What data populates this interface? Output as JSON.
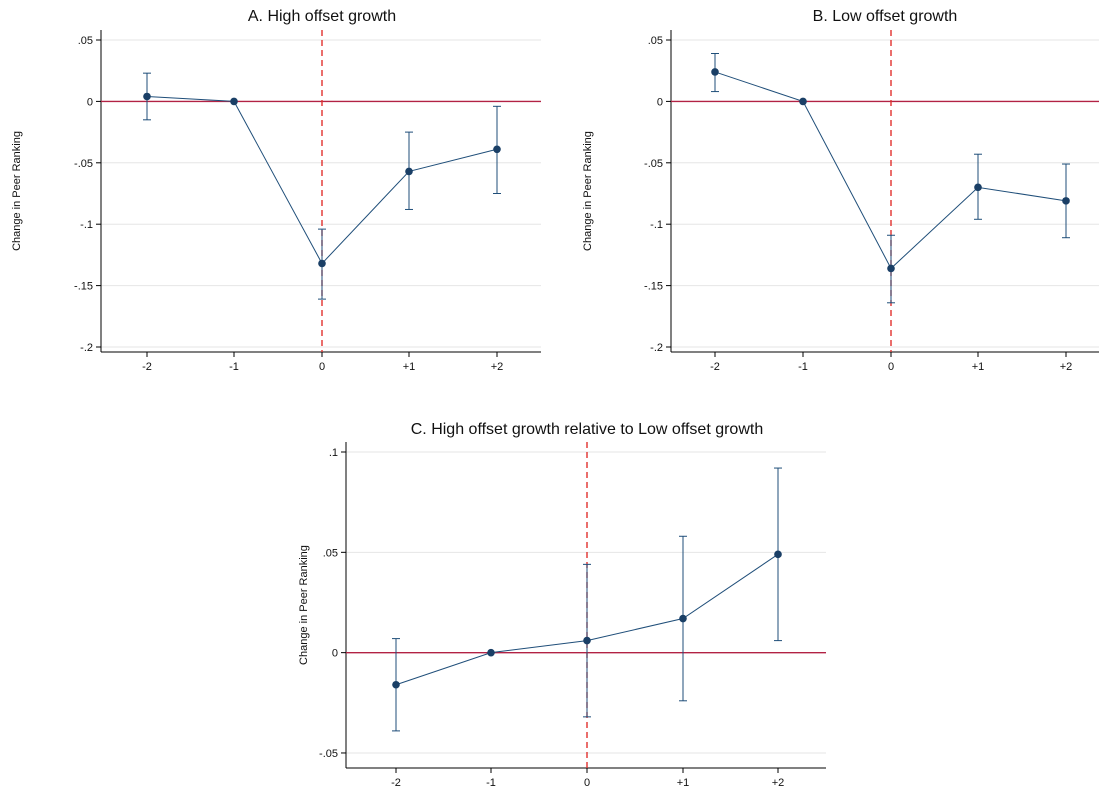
{
  "colors": {
    "series": "#1f4e79",
    "marker": "#1a3f66",
    "zero_line": "#b22244",
    "event_line": "#e0302e",
    "grid": "#e6e6e6",
    "axis": "#000000"
  },
  "chart_data": [
    {
      "type": "line",
      "title": "A. High offset growth",
      "ylabel": "Change in Peer Ranking",
      "xlabel": "",
      "categories": [
        "-2",
        "-1",
        "0",
        "+1",
        "+2"
      ],
      "ytick_labels": [
        ".05",
        "0",
        "-.05",
        "-.1",
        "-.15",
        "-.2"
      ],
      "yticks": [
        0.05,
        0,
        -0.05,
        -0.1,
        -0.15,
        -0.2
      ],
      "ylim": [
        -0.2,
        0.05
      ],
      "grid": true,
      "event_line_at": "0",
      "zero_line": true,
      "series": [
        {
          "values": [
            0.004,
            0.0,
            -0.132,
            -0.057,
            -0.039
          ],
          "ci_low": [
            -0.015,
            0.0,
            -0.161,
            -0.088,
            -0.075
          ],
          "ci_high": [
            0.023,
            0.0,
            -0.104,
            -0.025,
            -0.004
          ]
        }
      ]
    },
    {
      "type": "line",
      "title": "B. Low offset growth",
      "ylabel": "Change in Peer Ranking",
      "xlabel": "",
      "categories": [
        "-2",
        "-1",
        "0",
        "+1",
        "+2"
      ],
      "ytick_labels": [
        ".05",
        "0",
        "-.05",
        "-.1",
        "-.15",
        "-.2"
      ],
      "yticks": [
        0.05,
        0,
        -0.05,
        -0.1,
        -0.15,
        -0.2
      ],
      "ylim": [
        -0.2,
        0.05
      ],
      "grid": true,
      "event_line_at": "0",
      "zero_line": true,
      "series": [
        {
          "values": [
            0.024,
            0.0,
            -0.136,
            -0.07,
            -0.081
          ],
          "ci_low": [
            0.008,
            0.0,
            -0.164,
            -0.096,
            -0.111
          ],
          "ci_high": [
            0.039,
            0.0,
            -0.109,
            -0.043,
            -0.051
          ]
        }
      ]
    },
    {
      "type": "line",
      "title": "C. High offset growth relative to Low offset growth",
      "ylabel": "Change in Peer Ranking",
      "xlabel": "",
      "categories": [
        "-2",
        "-1",
        "0",
        "+1",
        "+2"
      ],
      "ytick_labels": [
        ".1",
        ".05",
        "0",
        "-.05"
      ],
      "yticks": [
        0.1,
        0.05,
        0,
        -0.05
      ],
      "ylim": [
        -0.055,
        0.1
      ],
      "grid": true,
      "event_line_at": "0",
      "zero_line": true,
      "series": [
        {
          "values": [
            -0.016,
            0.0,
            0.006,
            0.017,
            0.049
          ],
          "ci_low": [
            -0.039,
            0.0,
            -0.032,
            -0.024,
            0.006
          ],
          "ci_high": [
            0.007,
            0.0,
            0.044,
            0.058,
            0.092
          ]
        }
      ]
    }
  ]
}
